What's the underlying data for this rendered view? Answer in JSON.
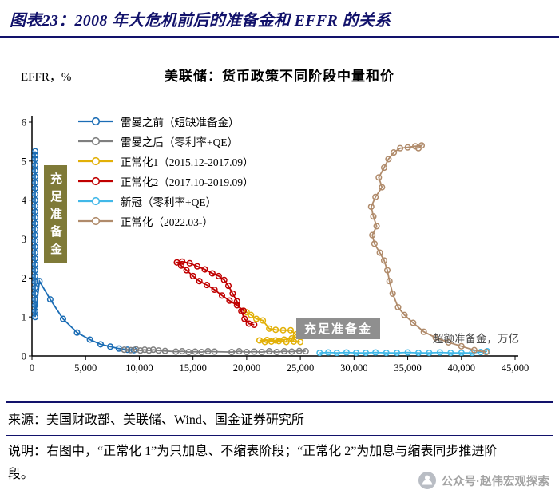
{
  "header": {
    "title": "图表23：2008 年大危机前后的准备金和 EFFR 的关系"
  },
  "chart_data": {
    "type": "line",
    "title": "美联储：货币政策不同阶段中量和价",
    "ylabel": "EFFR，%",
    "xlabel": "超额准备金，万亿",
    "xlim": [
      0,
      45000
    ],
    "ylim": [
      0,
      6
    ],
    "grid": false,
    "legend_position": "upper-left",
    "y_ticks": [
      0,
      1,
      2,
      3,
      4,
      5,
      6
    ],
    "x_ticks": [
      {
        "v": 0,
        "label": "0"
      },
      {
        "v": 5000,
        "label": "5,000"
      },
      {
        "v": 10000,
        "label": "10,000"
      },
      {
        "v": 15000,
        "label": "15,000"
      },
      {
        "v": 20000,
        "label": "20,000"
      },
      {
        "v": 25000,
        "label": "25,000"
      },
      {
        "v": 30000,
        "label": "30,000"
      },
      {
        "v": 35000,
        "label": "35,000"
      },
      {
        "v": 40000,
        "label": "40,000"
      },
      {
        "v": 45000,
        "label": "45,000"
      }
    ],
    "annotations": [
      {
        "text": "充足准备金",
        "color": "#7f7a38",
        "orientation": "vertical"
      },
      {
        "text": "充足准备金",
        "color": "#8f8f8f",
        "orientation": "horizontal"
      }
    ],
    "series": [
      {
        "name": "雷曼之前（短缺准备金）",
        "color": "#1b6db5",
        "points": [
          [
            300,
            5.25
          ],
          [
            300,
            5.15
          ],
          [
            300,
            5.05
          ],
          [
            300,
            4.9
          ],
          [
            300,
            4.75
          ],
          [
            300,
            4.6
          ],
          [
            300,
            4.45
          ],
          [
            300,
            4.3
          ],
          [
            300,
            4.15
          ],
          [
            300,
            4.0
          ],
          [
            300,
            3.85
          ],
          [
            300,
            3.7
          ],
          [
            300,
            3.55
          ],
          [
            300,
            3.4
          ],
          [
            300,
            3.25
          ],
          [
            300,
            3.1
          ],
          [
            300,
            2.95
          ],
          [
            300,
            2.8
          ],
          [
            300,
            2.65
          ],
          [
            300,
            2.5
          ],
          [
            300,
            2.35
          ],
          [
            300,
            2.2
          ],
          [
            300,
            2.05
          ],
          [
            300,
            1.9
          ],
          [
            300,
            1.75
          ],
          [
            300,
            1.6
          ],
          [
            300,
            1.45
          ],
          [
            300,
            1.3
          ],
          [
            300,
            1.15
          ],
          [
            300,
            1.0
          ],
          [
            700,
            1.92
          ],
          [
            1700,
            1.45
          ],
          [
            2900,
            0.95
          ],
          [
            4200,
            0.6
          ],
          [
            5400,
            0.42
          ],
          [
            6400,
            0.3
          ],
          [
            7300,
            0.24
          ],
          [
            8100,
            0.19
          ],
          [
            8900,
            0.16
          ],
          [
            9500,
            0.15
          ]
        ]
      },
      {
        "name": "雷曼之后（零利率+QE）",
        "color": "#7f7f7f",
        "points": [
          [
            8600,
            0.16
          ],
          [
            9200,
            0.15
          ],
          [
            9700,
            0.17
          ],
          [
            10100,
            0.14
          ],
          [
            10500,
            0.16
          ],
          [
            10900,
            0.14
          ],
          [
            11300,
            0.16
          ],
          [
            11800,
            0.14
          ],
          [
            12400,
            0.13
          ],
          [
            13400,
            0.11
          ],
          [
            14000,
            0.12
          ],
          [
            14600,
            0.1
          ],
          [
            15200,
            0.11
          ],
          [
            15800,
            0.1
          ],
          [
            16400,
            0.12
          ],
          [
            17000,
            0.11
          ],
          [
            18600,
            0.1
          ],
          [
            19300,
            0.12
          ],
          [
            20000,
            0.1
          ],
          [
            20700,
            0.11
          ],
          [
            21400,
            0.1
          ],
          [
            22100,
            0.12
          ],
          [
            22800,
            0.1
          ],
          [
            23500,
            0.12
          ],
          [
            24200,
            0.11
          ],
          [
            24900,
            0.13
          ],
          [
            25500,
            0.12
          ]
        ]
      },
      {
        "name": "正常化1（2015.12-2017.09）",
        "color": "#e2b007",
        "points": [
          [
            25000,
            0.36
          ],
          [
            24400,
            0.37
          ],
          [
            23700,
            0.36
          ],
          [
            23000,
            0.38
          ],
          [
            22300,
            0.37
          ],
          [
            21700,
            0.36
          ],
          [
            21200,
            0.4
          ],
          [
            21900,
            0.41
          ],
          [
            22700,
            0.4
          ],
          [
            23500,
            0.42
          ],
          [
            24200,
            0.45
          ],
          [
            24600,
            0.55
          ],
          [
            24100,
            0.66
          ],
          [
            23400,
            0.66
          ],
          [
            22700,
            0.67
          ],
          [
            22100,
            0.7
          ],
          [
            21500,
            0.91
          ],
          [
            20900,
            0.95
          ],
          [
            20400,
            1.05
          ],
          [
            20000,
            1.12
          ],
          [
            19700,
            1.16
          ]
        ]
      },
      {
        "name": "正常化2（2017.10-2019.09）",
        "color": "#c00000",
        "points": [
          [
            19700,
            1.16
          ],
          [
            19100,
            1.3
          ],
          [
            18400,
            1.42
          ],
          [
            17700,
            1.55
          ],
          [
            17000,
            1.7
          ],
          [
            16300,
            1.82
          ],
          [
            15600,
            1.92
          ],
          [
            15000,
            2.05
          ],
          [
            14400,
            2.2
          ],
          [
            13900,
            2.32
          ],
          [
            13500,
            2.4
          ],
          [
            14000,
            2.42
          ],
          [
            14700,
            2.38
          ],
          [
            15400,
            2.3
          ],
          [
            16100,
            2.22
          ],
          [
            16800,
            2.12
          ],
          [
            17400,
            2.05
          ],
          [
            17900,
            1.95
          ],
          [
            18300,
            1.8
          ],
          [
            18700,
            1.6
          ],
          [
            19100,
            1.4
          ],
          [
            19500,
            1.15
          ],
          [
            19800,
            0.95
          ],
          [
            20200,
            0.83
          ],
          [
            20700,
            0.8
          ]
        ]
      },
      {
        "name": "新冠（零利率+QE）",
        "color": "#41b8e8",
        "points": [
          [
            26800,
            0.08
          ],
          [
            27600,
            0.09
          ],
          [
            28400,
            0.08
          ],
          [
            29300,
            0.09
          ],
          [
            30200,
            0.08
          ],
          [
            31100,
            0.08
          ],
          [
            32000,
            0.09
          ],
          [
            33000,
            0.08
          ],
          [
            34000,
            0.08
          ],
          [
            35000,
            0.09
          ],
          [
            36000,
            0.08
          ],
          [
            37000,
            0.08
          ],
          [
            38000,
            0.09
          ],
          [
            39000,
            0.08
          ],
          [
            40000,
            0.08
          ],
          [
            41000,
            0.08
          ],
          [
            41800,
            0.1
          ],
          [
            42400,
            0.12
          ]
        ]
      },
      {
        "name": "正常化（2022.03-）",
        "color": "#b08b6b",
        "points": [
          [
            42300,
            0.1
          ],
          [
            41200,
            0.15
          ],
          [
            40000,
            0.25
          ],
          [
            38800,
            0.35
          ],
          [
            37600,
            0.47
          ],
          [
            36500,
            0.62
          ],
          [
            35500,
            0.85
          ],
          [
            34700,
            1.05
          ],
          [
            34100,
            1.25
          ],
          [
            33600,
            1.6
          ],
          [
            33300,
            1.92
          ],
          [
            33100,
            2.2
          ],
          [
            32800,
            2.45
          ],
          [
            32400,
            2.65
          ],
          [
            31900,
            2.88
          ],
          [
            31700,
            3.1
          ],
          [
            32100,
            3.33
          ],
          [
            31800,
            3.58
          ],
          [
            31600,
            3.83
          ],
          [
            32000,
            4.08
          ],
          [
            32600,
            4.33
          ],
          [
            32300,
            4.58
          ],
          [
            32800,
            4.83
          ],
          [
            33200,
            5.05
          ],
          [
            33700,
            5.22
          ],
          [
            34300,
            5.33
          ],
          [
            35000,
            5.35
          ],
          [
            35700,
            5.38
          ],
          [
            36300,
            5.4
          ],
          [
            36000,
            5.33
          ]
        ]
      }
    ]
  },
  "footer": {
    "source": "来源：美国财政部、美联储、Wind、国金证券研究所",
    "note": "说明：右图中，“正常化 1”为只加息、不缩表阶段；“正常化 2”为加息与缩表同步推进阶段。",
    "wechat": "公众号·赵伟宏观探索"
  }
}
